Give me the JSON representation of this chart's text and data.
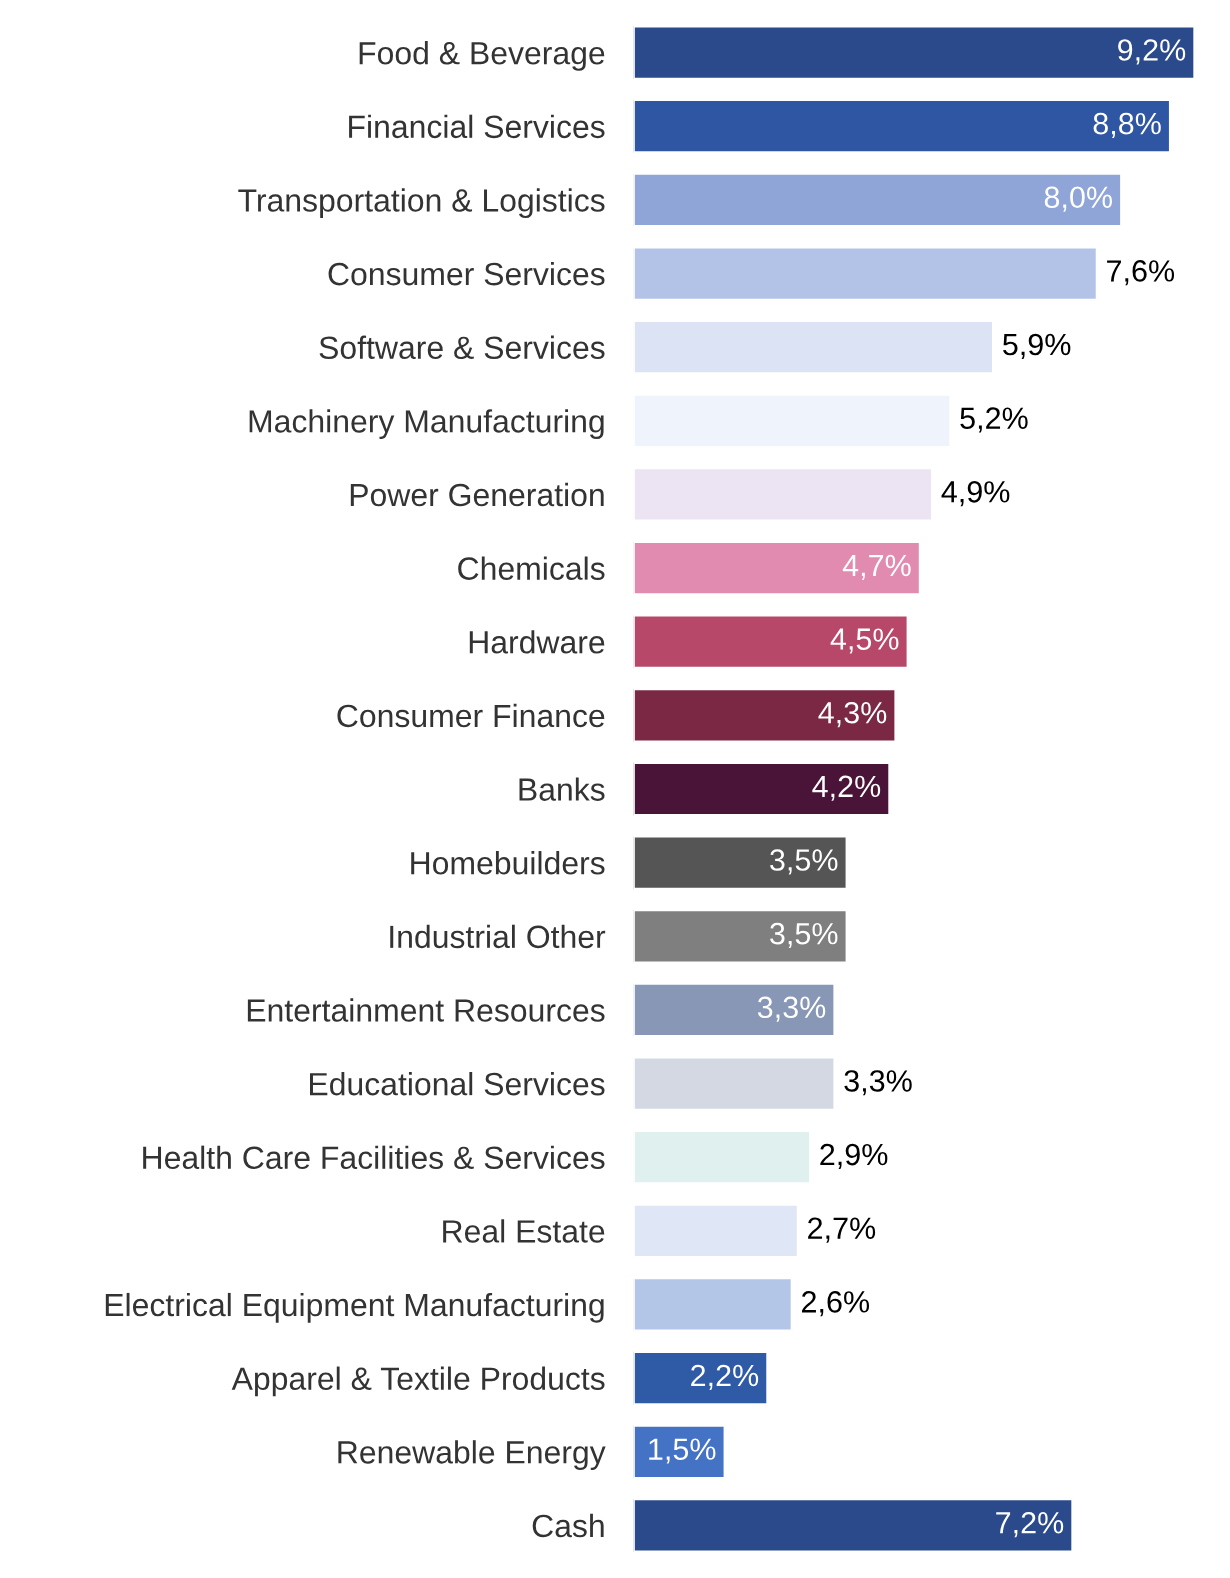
{
  "chart_data": {
    "type": "bar",
    "orientation": "horizontal",
    "categories": [
      "Food & Beverage",
      "Financial Services",
      "Transportation & Logistics",
      "Consumer Services",
      "Software & Services",
      "Machinery Manufacturing",
      "Power Generation",
      "Chemicals",
      "Hardware",
      "Consumer Finance",
      "Banks",
      "Homebuilders",
      "Industrial Other",
      "Entertainment Resources",
      "Educational Services",
      "Health Care Facilities & Services",
      "Real Estate",
      "Electrical Equipment Manufacturing",
      "Apparel & Textile Products",
      "Renewable Energy",
      "Cash"
    ],
    "values": [
      9.2,
      8.8,
      8.0,
      7.6,
      5.9,
      5.2,
      4.9,
      4.7,
      4.5,
      4.3,
      4.2,
      3.5,
      3.5,
      3.3,
      3.3,
      2.9,
      2.7,
      2.6,
      2.2,
      1.5,
      7.2
    ],
    "value_labels": [
      "9,2%",
      "8,8%",
      "8,0%",
      "7,6%",
      "5,9%",
      "5,2%",
      "4,9%",
      "4,7%",
      "4,5%",
      "4,3%",
      "4,2%",
      "3,5%",
      "3,5%",
      "3,3%",
      "3,3%",
      "2,9%",
      "2,7%",
      "2,6%",
      "2,2%",
      "1,5%",
      "7,2%"
    ],
    "colors": [
      "#2a4a8c",
      "#2f56a3",
      "#8fa5d8",
      "#b3c3e8",
      "#dce3f5",
      "#eef3fc",
      "#ece4f2",
      "#e18bb0",
      "#b84869",
      "#7a2843",
      "#4a1438",
      "#555555",
      "#7f7f7f",
      "#8797b5",
      "#d3d8e2",
      "#dff0ee",
      "#dfe6f6",
      "#b4c6e8",
      "#2f5aa6",
      "#4472c4",
      "#2a4a8c"
    ],
    "grid": false,
    "legend": false
  }
}
